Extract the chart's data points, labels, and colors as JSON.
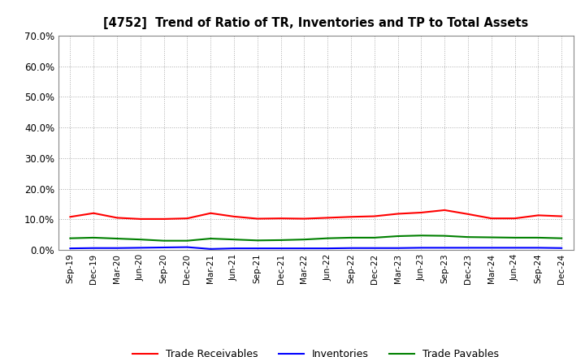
{
  "title": "[4752]  Trend of Ratio of TR, Inventories and TP to Total Assets",
  "x_labels": [
    "Sep-19",
    "Dec-19",
    "Mar-20",
    "Jun-20",
    "Sep-20",
    "Dec-20",
    "Mar-21",
    "Jun-21",
    "Sep-21",
    "Dec-21",
    "Mar-22",
    "Jun-22",
    "Sep-22",
    "Dec-22",
    "Mar-23",
    "Jun-23",
    "Sep-23",
    "Dec-23",
    "Mar-24",
    "Jun-24",
    "Sep-24",
    "Dec-24"
  ],
  "trade_receivables": [
    0.108,
    0.12,
    0.105,
    0.101,
    0.101,
    0.103,
    0.12,
    0.109,
    0.102,
    0.103,
    0.102,
    0.105,
    0.108,
    0.11,
    0.118,
    0.122,
    0.13,
    0.117,
    0.103,
    0.103,
    0.113,
    0.11
  ],
  "inventories": [
    0.005,
    0.006,
    0.006,
    0.007,
    0.008,
    0.009,
    0.003,
    0.005,
    0.005,
    0.005,
    0.005,
    0.005,
    0.006,
    0.006,
    0.006,
    0.007,
    0.007,
    0.007,
    0.007,
    0.007,
    0.007,
    0.006
  ],
  "trade_payables": [
    0.038,
    0.04,
    0.037,
    0.034,
    0.03,
    0.03,
    0.037,
    0.034,
    0.031,
    0.032,
    0.034,
    0.038,
    0.04,
    0.04,
    0.045,
    0.047,
    0.046,
    0.042,
    0.041,
    0.04,
    0.04,
    0.038
  ],
  "ylim": [
    0.0,
    0.7
  ],
  "yticks": [
    0.0,
    0.1,
    0.2,
    0.3,
    0.4,
    0.5,
    0.6,
    0.7
  ],
  "colors": {
    "trade_receivables": "#FF0000",
    "inventories": "#0000FF",
    "trade_payables": "#008000"
  },
  "legend_labels": [
    "Trade Receivables",
    "Inventories",
    "Trade Payables"
  ],
  "background_color": "#FFFFFF",
  "grid_color": "#AAAAAA"
}
